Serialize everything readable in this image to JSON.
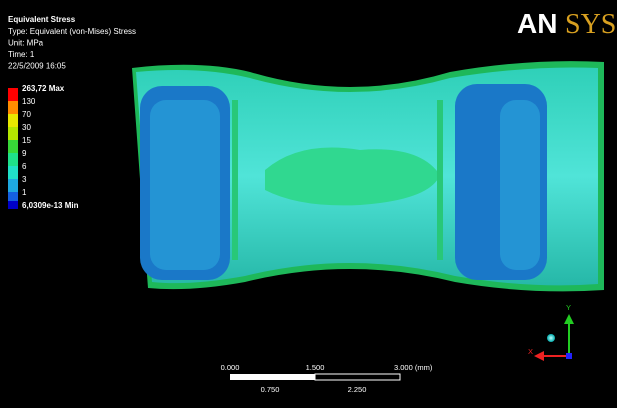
{
  "header": {
    "title": "Equivalent Stress",
    "lines": [
      "Type: Equivalent (von-Mises) Stress",
      "Unit: MPa",
      "Time: 1",
      "22/5/2009 16:05"
    ]
  },
  "legend": {
    "entries": [
      {
        "label": "263,72 Max",
        "color": "#ff0000"
      },
      {
        "label": "130",
        "color": "#ff8c00"
      },
      {
        "label": "70",
        "color": "#e8e800"
      },
      {
        "label": "30",
        "color": "#b4e600"
      },
      {
        "label": "15",
        "color": "#38d838"
      },
      {
        "label": "9",
        "color": "#1ee08a"
      },
      {
        "label": "6",
        "color": "#20e0c8"
      },
      {
        "label": "3",
        "color": "#1ea8e0"
      },
      {
        "label": "1",
        "color": "#1460e0"
      },
      {
        "label": "6,0309e-13 Min",
        "color": "#0000c8"
      }
    ]
  },
  "logo": {
    "part1": "AN",
    "part2": "SYS"
  },
  "scale_bar": {
    "top": [
      "0.000",
      "1.500",
      "3.000 (mm)"
    ],
    "bottom": [
      "0.750",
      "2.250"
    ]
  },
  "triad": {
    "y": "Y",
    "x": "X"
  }
}
